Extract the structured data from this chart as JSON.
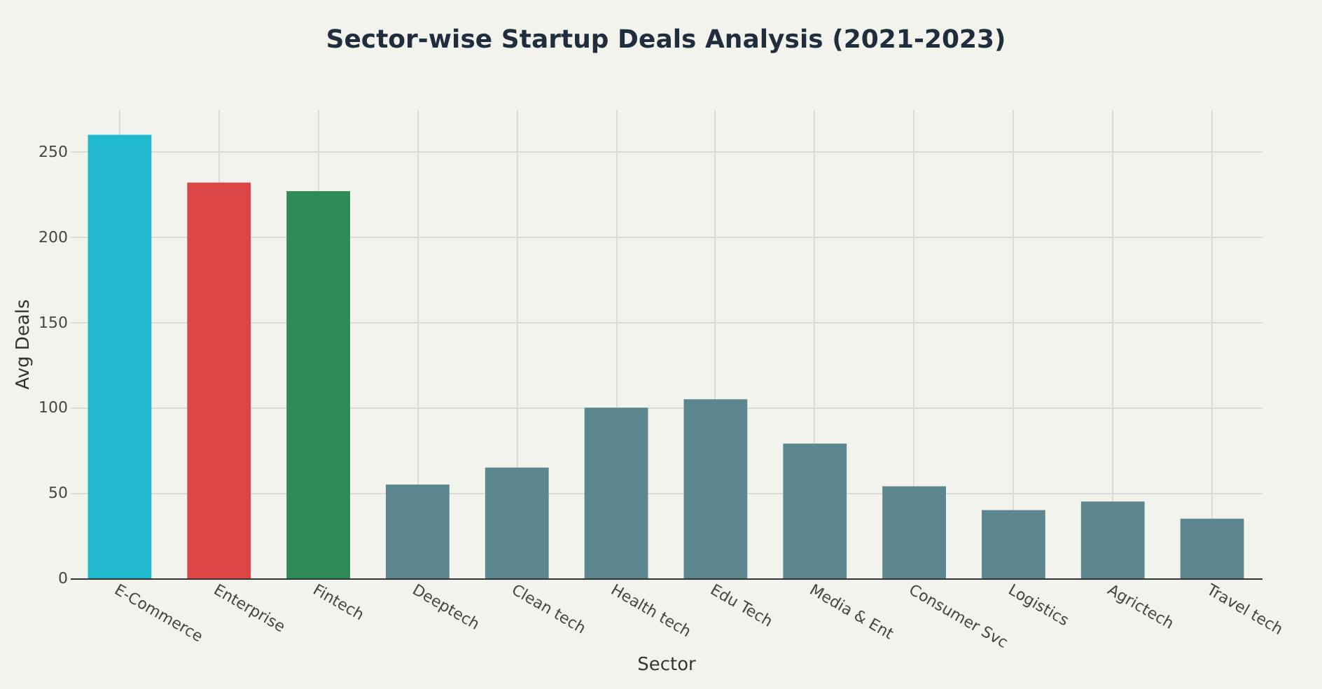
{
  "chart_data": {
    "type": "bar",
    "title": "Sector-wise Startup Deals Analysis (2021-2023)",
    "xlabel": "Sector",
    "ylabel": "Avg Deals",
    "categories": [
      "E-Commerce",
      "Enterprise",
      "Fintech",
      "Deeptech",
      "Clean tech",
      "Health tech",
      "Edu Tech",
      "Media & Ent",
      "Consumer Svc",
      "Logistics",
      "Agrictech",
      "Travel tech"
    ],
    "values": [
      260,
      232,
      227,
      55,
      65,
      100,
      105,
      79,
      54,
      40,
      45,
      35
    ],
    "colors": [
      "#1fb8cd",
      "#db4545",
      "#2e8b57",
      "#5d878f",
      "#5d878f",
      "#5d878f",
      "#5d878f",
      "#5d878f",
      "#5d878f",
      "#5d878f",
      "#5d878f",
      "#5d878f"
    ],
    "ylim": [
      0,
      275
    ],
    "yticks": [
      0,
      50,
      100,
      150,
      200,
      250
    ],
    "grid": true
  }
}
